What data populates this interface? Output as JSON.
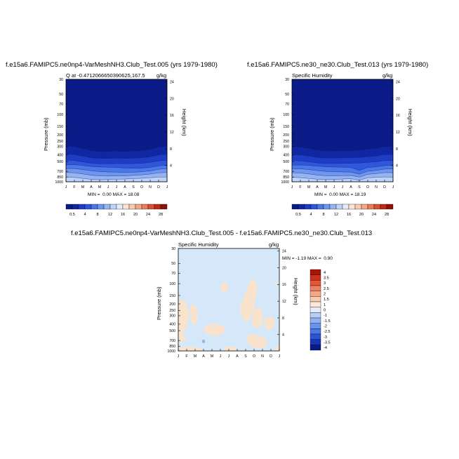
{
  "colors": {
    "bg_dark": "#0c1d8f",
    "diff_bg": "#d5e8fa",
    "diff_pos": "#f9e3cd",
    "diff_neg": "#9ab6e2"
  },
  "top_palette": [
    "#0a1a86",
    "#1027a3",
    "#1f3cc5",
    "#2e57dc",
    "#4a78e8",
    "#6d96ee",
    "#94b5f2",
    "#bdd3f7",
    "#e4ecf8",
    "#fbe6d4",
    "#f8cbae",
    "#f3a782",
    "#ea7c57",
    "#d9512f",
    "#bd2a17",
    "#8f1208"
  ],
  "top_cb_labels": [
    "0.5",
    "4",
    "8",
    "12",
    "16",
    "20",
    "24",
    "28"
  ],
  "diff_palette": [
    "#0a1a86",
    "#1536b8",
    "#2c55d6",
    "#4a76e6",
    "#6a93ec",
    "#8fb0f1",
    "#b7cdf5",
    "#e2ecf9",
    "#fbe8d6",
    "#f6cbae",
    "#f2a883",
    "#ec8160",
    "#e3583a",
    "#d12f1a",
    "#a61506"
  ],
  "diff_cb_labels": [
    "4",
    "3.5",
    "3",
    "2.5",
    "2",
    "1.5",
    "1",
    "0",
    "-1",
    "-1.5",
    "-2",
    "-2.5",
    "-3",
    "-3.5",
    "-4"
  ],
  "months": [
    "J",
    "F",
    "M",
    "A",
    "M",
    "J",
    "J",
    "A",
    "S",
    "O",
    "N",
    "D",
    "J"
  ],
  "pressure_ticks": [
    "30",
    "50",
    "70",
    "100",
    "150",
    "200",
    "250",
    "300",
    "400",
    "500",
    "700",
    "850",
    "1000"
  ],
  "height_ticks": [
    "24",
    "20",
    "16",
    "12",
    "8",
    "4"
  ],
  "panels": [
    {
      "title": "f.e15a6.FAMIPC5.ne0np4-VarMeshNH3.Club_Test.005 (yrs 1979-1980)",
      "left_subtitle": "Q at -0.4712066650390625,167.5",
      "right_subtitle": "g/kg",
      "ylabel": "Pressure (mb)",
      "ylabel_right": "Height (km)",
      "stats": "MIN =  0.00 MAX = 18.08"
    },
    {
      "title": "f.e15a6.FAMIPC5.ne30_ne30.Club_Test.013 (yrs 1979-1980)",
      "left_subtitle": "Specific Humidity",
      "right_subtitle": "g/kg",
      "ylabel": "Pressure (mb)",
      "ylabel_right": "Height (km)",
      "stats": "MIN =  0.00 MAX = 18.19"
    },
    {
      "title": "f.e15a6.FAMIPC5.ne0np4-VarMeshNH3.Club_Test.005 - f.e15a6.FAMIPC5.ne30_ne30.Club_Test.013",
      "left_subtitle": "Specific Humidity",
      "right_subtitle": "g/kg",
      "ylabel": "Pressure (mb)",
      "ylabel_right": "Height (km)",
      "stats": "MIN = -1.19 MAX =  0.90"
    }
  ],
  "chart_data": [
    {
      "type": "heatmap",
      "title": "f.e15a6.FAMIPC5.ne0np4-VarMeshNH3.Club_Test.005 (yrs 1979-1980)",
      "xlabel": "",
      "ylabel": "Pressure (mb)",
      "y2label": "Height (km)",
      "x_categories": [
        "J",
        "F",
        "M",
        "A",
        "M",
        "J",
        "J",
        "A",
        "S",
        "O",
        "N",
        "D",
        "J"
      ],
      "y_ticks": [
        30,
        50,
        70,
        100,
        150,
        200,
        250,
        300,
        400,
        500,
        700,
        850,
        1000
      ],
      "y2_ticks": [
        24,
        20,
        16,
        12,
        8,
        4
      ],
      "contour_levels": [
        0.5,
        2,
        4,
        6,
        8,
        10,
        12,
        14,
        16,
        18,
        20,
        22,
        24,
        26,
        28
      ],
      "min": 0.0,
      "max": 18.08,
      "units": "g/kg"
    },
    {
      "type": "heatmap",
      "title": "f.e15a6.FAMIPC5.ne30_ne30.Club_Test.013 (yrs 1979-1980)",
      "xlabel": "",
      "ylabel": "Pressure (mb)",
      "y2label": "Height (km)",
      "x_categories": [
        "J",
        "F",
        "M",
        "A",
        "M",
        "J",
        "J",
        "A",
        "S",
        "O",
        "N",
        "D",
        "J"
      ],
      "y_ticks": [
        30,
        50,
        70,
        100,
        150,
        200,
        250,
        300,
        400,
        500,
        700,
        850,
        1000
      ],
      "y2_ticks": [
        24,
        20,
        16,
        12,
        8,
        4
      ],
      "contour_levels": [
        0.5,
        2,
        4,
        6,
        8,
        10,
        12,
        14,
        16,
        18,
        20,
        22,
        24,
        26,
        28
      ],
      "min": 0.0,
      "max": 18.19,
      "units": "g/kg"
    },
    {
      "type": "heatmap",
      "title": "f.e15a6.FAMIPC5.ne0np4-VarMeshNH3.Club_Test.005 - f.e15a6.FAMIPC5.ne30_ne30.Club_Test.013",
      "xlabel": "",
      "ylabel": "Pressure (mb)",
      "y2label": "Height (km)",
      "x_categories": [
        "J",
        "F",
        "M",
        "A",
        "M",
        "J",
        "J",
        "A",
        "S",
        "O",
        "N",
        "D",
        "J"
      ],
      "y_ticks": [
        30,
        50,
        70,
        100,
        150,
        200,
        250,
        300,
        400,
        500,
        700,
        850,
        1000
      ],
      "y2_ticks": [
        24,
        20,
        16,
        12,
        8,
        4
      ],
      "contour_levels": [
        -4,
        -3.5,
        -3,
        -2.5,
        -2,
        -1.5,
        -1,
        0,
        1,
        1.5,
        2,
        2.5,
        3,
        3.5,
        4
      ],
      "min": -1.19,
      "max": 0.9,
      "units": "g/kg"
    }
  ]
}
